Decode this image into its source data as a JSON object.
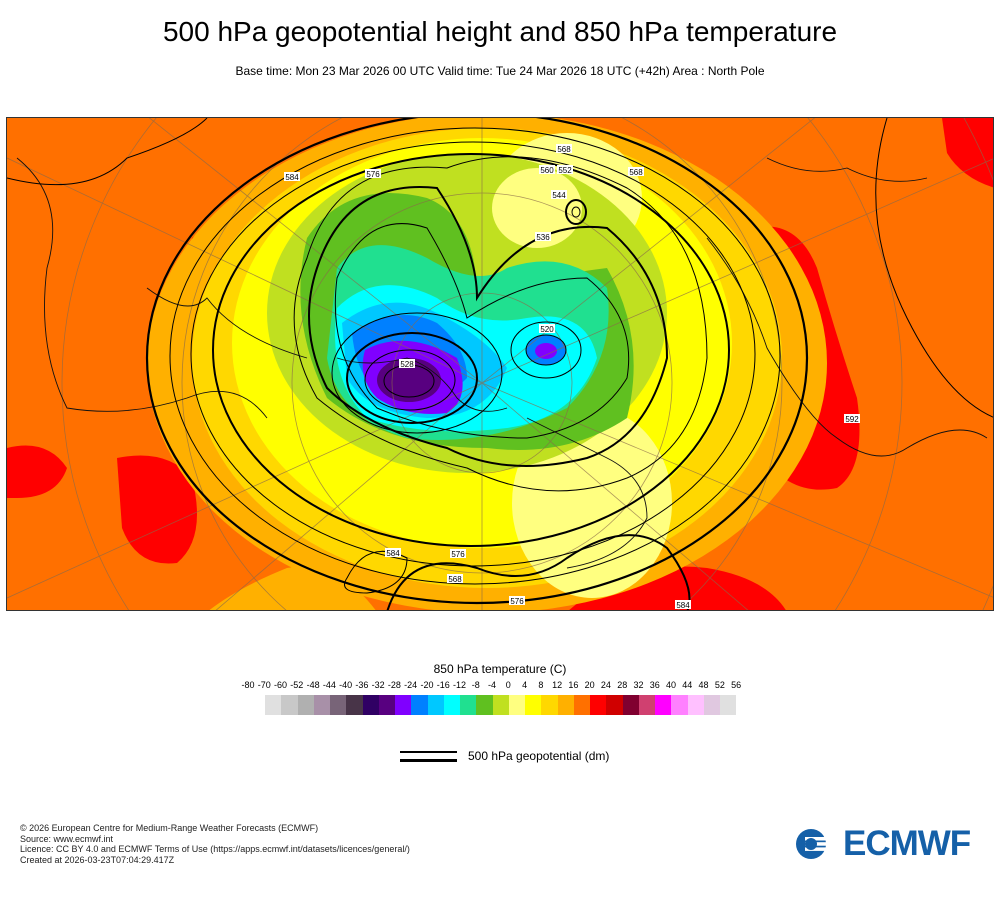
{
  "header": {
    "title": "500 hPa geopotential height and 850 hPa temperature",
    "subtitle": "Base time: Mon 23 Mar 2026 00 UTC Valid time: Tue 24 Mar 2026 18 UTC (+42h) Area : North Pole"
  },
  "map": {
    "contour_labels": [
      "584",
      "576",
      "568",
      "560",
      "552",
      "544",
      "536",
      "584",
      "576",
      "568",
      "576",
      "584",
      "592",
      "568",
      "528",
      "520"
    ]
  },
  "colorbar": {
    "title": "850 hPa temperature (C)",
    "labels": [
      "-80",
      "-70",
      "-60",
      "-52",
      "-48",
      "-44",
      "-40",
      "-36",
      "-32",
      "-28",
      "-24",
      "-20",
      "-16",
      "-12",
      "-8",
      "-4",
      "0",
      "4",
      "8",
      "12",
      "16",
      "20",
      "24",
      "28",
      "32",
      "36",
      "40",
      "44",
      "48",
      "52",
      "56"
    ],
    "colors": [
      "#e0e0e0",
      "#c8c8c8",
      "#b0b0b0",
      "#a890a8",
      "#786478",
      "#483448",
      "#300064",
      "#580080",
      "#8000ff",
      "#0080ff",
      "#00c8ff",
      "#00ffff",
      "#20e090",
      "#60c020",
      "#c0e020",
      "#ffff80",
      "#ffff00",
      "#ffd800",
      "#ffb000",
      "#ff7000",
      "#ff0000",
      "#d00000",
      "#800030",
      "#d04070",
      "#ff00ff",
      "#ff80ff",
      "#ffc0ff",
      "#e0c8e0",
      "#e0e0e0"
    ]
  },
  "legend": {
    "geopotential_label": "500 hPa geopotential (dm)"
  },
  "footer": {
    "lines": [
      "© 2026 European Centre for Medium-Range Weather Forecasts (ECMWF)",
      "Source: www.ecmwf.int",
      "Licence: CC BY 4.0 and ECMWF Terms of Use (https://apps.ecmwf.int/datasets/licences/general/)",
      "Created at 2026-03-23T07:04:29.417Z"
    ],
    "logo_text": "ECMWF"
  },
  "colors": {
    "brand": "#1560a8"
  }
}
